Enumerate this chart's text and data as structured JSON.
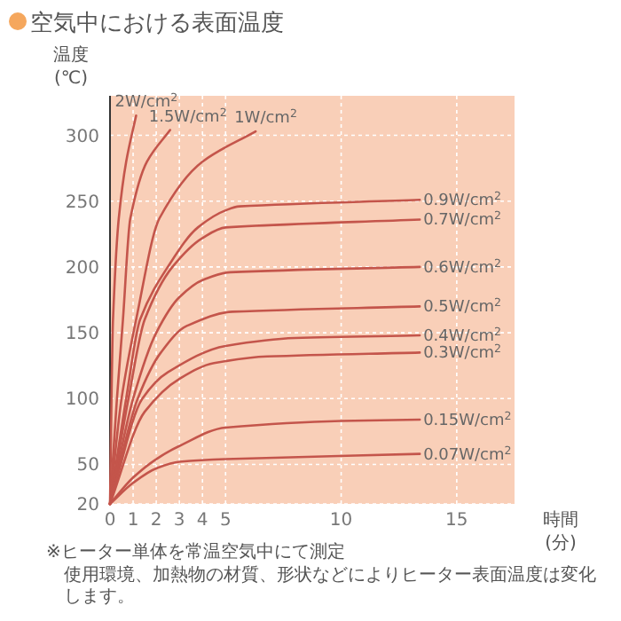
{
  "chart_data": {
    "type": "line",
    "title": "空気中における表面温度",
    "ylabel": "温度 (℃)",
    "xlabel": "時間 (分)",
    "xlim": [
      0,
      17.5
    ],
    "ylim": [
      20,
      330
    ],
    "xticks": [
      0,
      1,
      2,
      3,
      4,
      5,
      10,
      15
    ],
    "yticks": [
      20,
      50,
      100,
      150,
      200,
      250,
      300
    ],
    "grid": true,
    "legend": false,
    "series": [
      {
        "name": "2W/cm$^{2}$",
        "color": "#c4554b",
        "x": [
          0,
          0.13,
          0.38,
          0.7,
          1.13
        ],
        "values": [
          20,
          160,
          237,
          280,
          315
        ]
      },
      {
        "name": "1.5W/cm$^{2}$",
        "color": "#c4554b",
        "x": [
          0,
          0.3,
          0.56,
          0.88,
          1.6,
          2.6
        ],
        "values": [
          20,
          100,
          160,
          237,
          280,
          304
        ]
      },
      {
        "name": "1W/cm$^{2}$",
        "color": "#c4554b",
        "x": [
          0,
          0.5,
          1.13,
          2.14,
          4,
          6.3
        ],
        "values": [
          20,
          100,
          160,
          237,
          280,
          303
        ]
      },
      {
        "name": "0.9W/cm$^{2}$",
        "color": "#c4554b",
        "x": [
          0,
          0.7,
          1.3,
          2.5,
          3.8,
          5,
          5.6,
          13.4
        ],
        "values": [
          20,
          100,
          160,
          200,
          230,
          243,
          246,
          251
        ]
      },
      {
        "name": "0.7W/cm$^{2}$",
        "color": "#c4554b",
        "x": [
          0,
          0.8,
          1.5,
          2.7,
          4,
          5,
          13.4
        ],
        "values": [
          20,
          100,
          160,
          200,
          222,
          230,
          236
        ]
      },
      {
        "name": "0.6W/cm$^{2}$",
        "color": "#c4554b",
        "x": [
          0,
          1,
          2,
          3,
          4,
          5.2,
          13.4
        ],
        "values": [
          20,
          100,
          150,
          177,
          190,
          196,
          200
        ]
      },
      {
        "name": "0.5W/cm$^{2}$",
        "color": "#c4554b",
        "x": [
          0,
          1.2,
          2.2,
          3.3,
          5.3,
          13.4
        ],
        "values": [
          20,
          100,
          135,
          155,
          166,
          170
        ]
      },
      {
        "name": "0.4W/cm$^{2}$",
        "color": "#c4554b",
        "x": [
          0,
          1.4,
          2.5,
          5,
          8,
          13.4
        ],
        "values": [
          20,
          100,
          120,
          140,
          146,
          148
        ]
      },
      {
        "name": "0.3W/cm$^{2}$",
        "color": "#c4554b",
        "x": [
          0,
          1.5,
          3,
          4.5,
          6.8,
          13.4
        ],
        "values": [
          20,
          90,
          115,
          127,
          132,
          135
        ]
      },
      {
        "name": "0.15W/cm$^{2}$",
        "color": "#c4554b",
        "x": [
          0,
          1,
          2,
          3,
          5,
          10,
          13.4
        ],
        "values": [
          20,
          40,
          54,
          64,
          78,
          83,
          84
        ]
      },
      {
        "name": "0.07W/cm$^{2}$",
        "color": "#c4554b",
        "x": [
          0,
          1,
          2,
          3,
          5,
          13.4
        ],
        "values": [
          20,
          36,
          47,
          52,
          54,
          58
        ]
      }
    ],
    "annotations": [
      "※ヒーター単体を常温空気中にて測定",
      "使用環境、加熱物の材質、形状などによりヒーター表面温度は変化します。"
    ]
  }
}
